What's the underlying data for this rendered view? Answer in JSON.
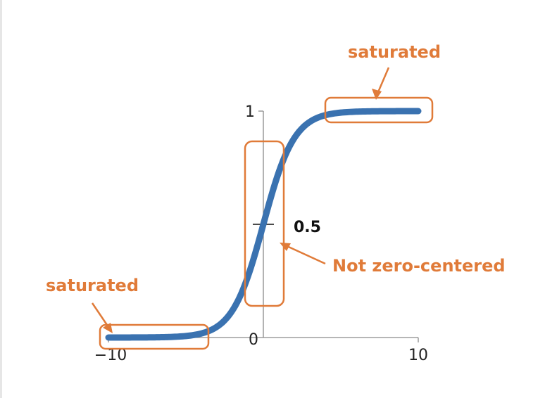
{
  "colors": {
    "curve": "#3a72b0",
    "annotation": "#e07b39",
    "axis": "#8a8a8a",
    "text": "#222222"
  },
  "chart_data": {
    "type": "line",
    "title": "",
    "xlabel": "",
    "ylabel": "",
    "function": "sigmoid",
    "xlim": [
      -10,
      10
    ],
    "ylim": [
      0,
      1
    ],
    "x_ticks": [
      "−10",
      "10"
    ],
    "y_ticks": [
      "0",
      "1"
    ],
    "midpoint_label": "0.5",
    "x": [
      -10,
      -8,
      -6,
      -4,
      -3,
      -2,
      -1,
      0,
      1,
      2,
      3,
      4,
      6,
      8,
      10
    ],
    "y": [
      4.54e-05,
      0.000335,
      0.00247,
      0.018,
      0.047,
      0.119,
      0.269,
      0.5,
      0.731,
      0.881,
      0.953,
      0.982,
      0.9975,
      0.99966,
      0.99995
    ],
    "grid": false,
    "annotations": [
      {
        "text": "saturated",
        "region": "top-right plateau"
      },
      {
        "text": "Not zero-centered",
        "region": "center"
      },
      {
        "text": "saturated",
        "region": "bottom-left plateau"
      }
    ]
  }
}
